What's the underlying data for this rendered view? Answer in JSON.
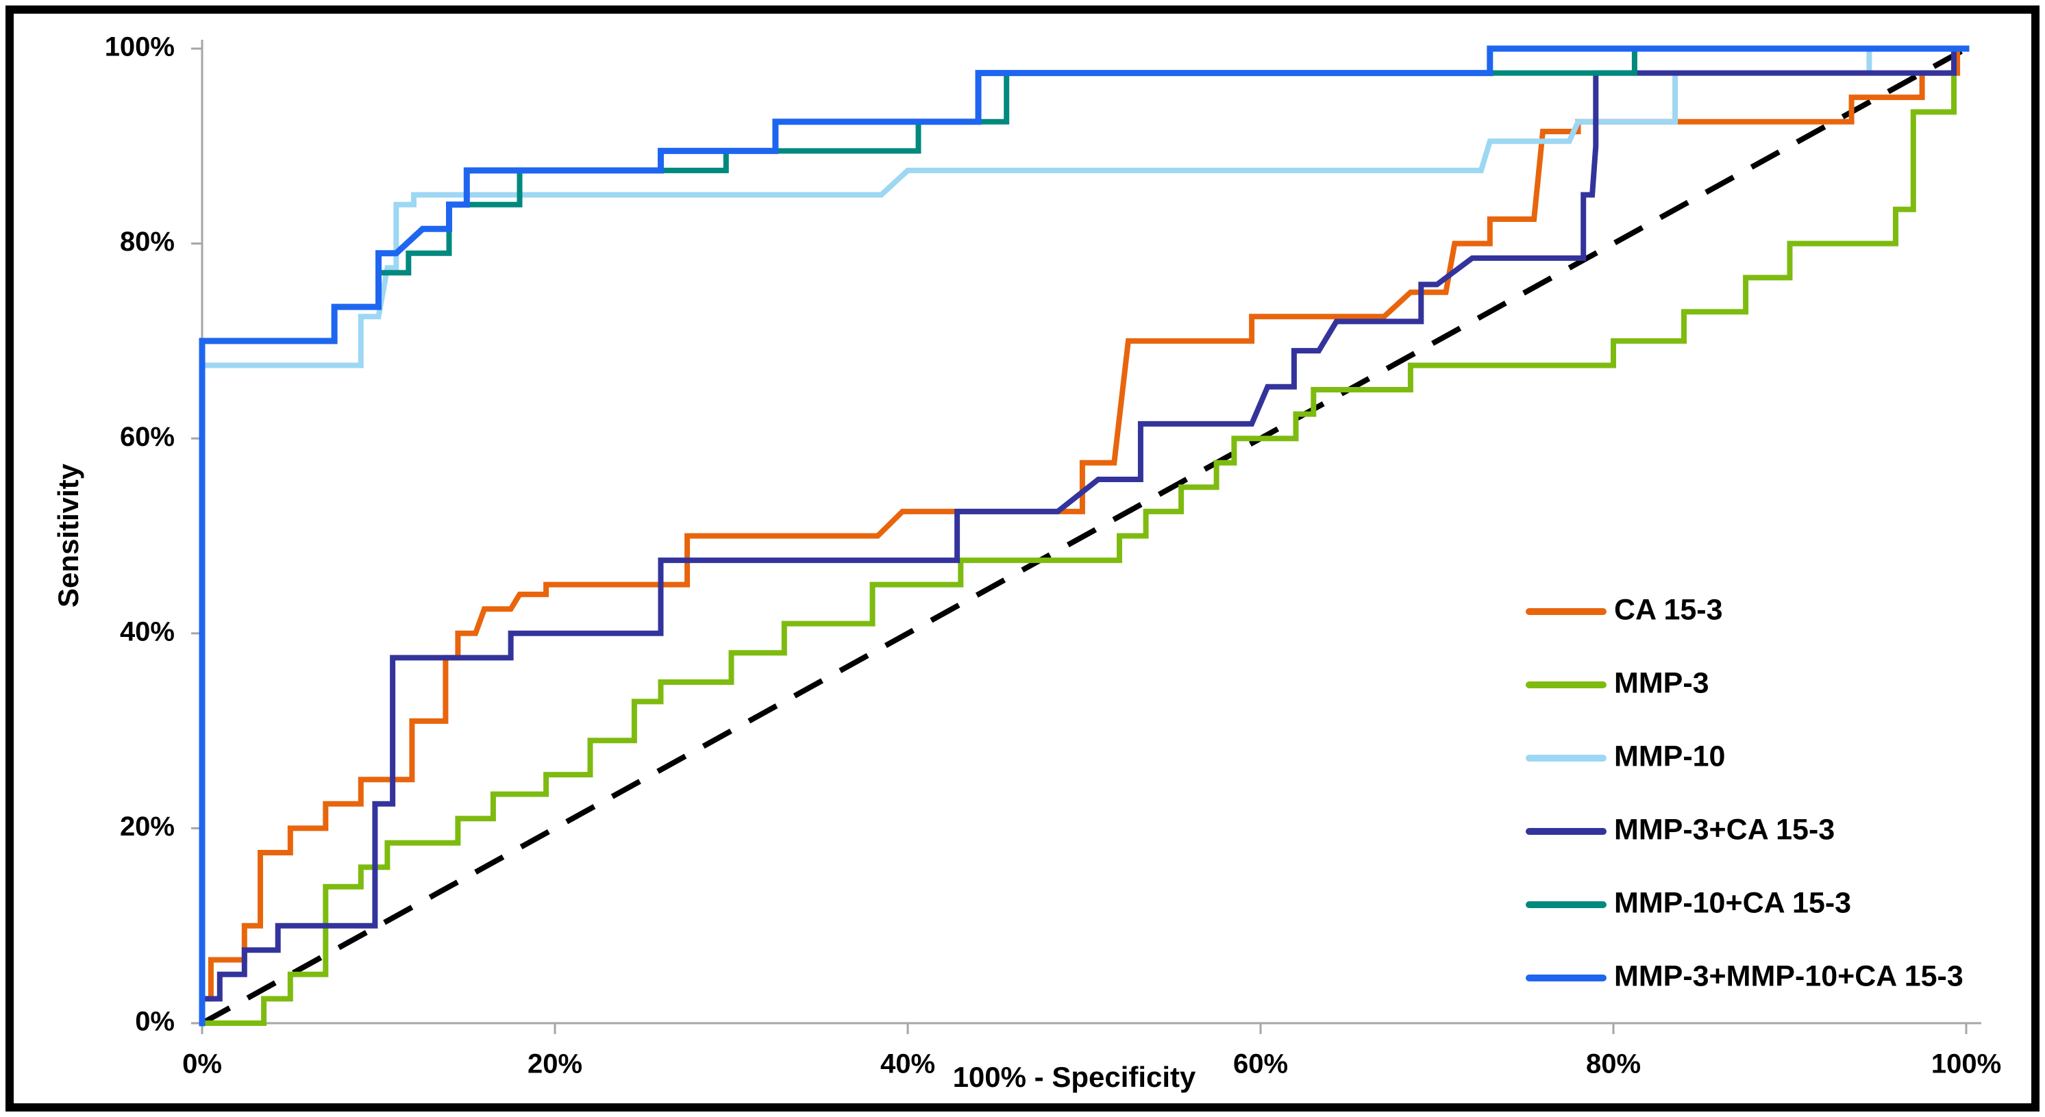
{
  "figure": {
    "background_color": "#ffffff",
    "border_color": "#000000",
    "axis_color": "#a6a6a6",
    "text_color": "#000000"
  },
  "chart_data": {
    "type": "line",
    "subtype": "roc-step-curves",
    "title": "",
    "xlabel": "100% - Specificity",
    "ylabel": "Sensitivity",
    "xlim": [
      0,
      100
    ],
    "ylim": [
      0,
      100
    ],
    "grid": false,
    "x_ticks": [
      "0%",
      "20%",
      "40%",
      "60%",
      "80%",
      "100%"
    ],
    "y_ticks": [
      "0%",
      "20%",
      "40%",
      "60%",
      "80%",
      "100%"
    ],
    "x_tick_values": [
      0,
      20,
      40,
      60,
      80,
      100
    ],
    "y_tick_values": [
      0,
      20,
      40,
      60,
      80,
      100
    ],
    "legend_position": "inside-right",
    "reference_line": {
      "name": "chance-diagonal",
      "style": "dashed",
      "color": "#000000",
      "from": [
        0,
        0
      ],
      "to": [
        100,
        100
      ]
    },
    "series": [
      {
        "name": "CA 15-3",
        "color": "#E8650D",
        "points": [
          [
            0,
            0
          ],
          [
            0,
            2.5
          ],
          [
            0.5,
            2.5
          ],
          [
            0.5,
            6.5
          ],
          [
            2.4,
            6.5
          ],
          [
            2.4,
            10
          ],
          [
            3.3,
            10
          ],
          [
            3.3,
            17.5
          ],
          [
            5,
            17.5
          ],
          [
            5,
            20
          ],
          [
            7,
            20
          ],
          [
            7,
            22.5
          ],
          [
            9,
            22.5
          ],
          [
            9,
            25
          ],
          [
            11.9,
            25
          ],
          [
            11.9,
            31
          ],
          [
            13.8,
            31
          ],
          [
            13.8,
            37.5
          ],
          [
            14.5,
            37.5
          ],
          [
            14.5,
            40
          ],
          [
            15.5,
            40
          ],
          [
            16,
            42.5
          ],
          [
            17.5,
            42.5
          ],
          [
            18,
            44
          ],
          [
            19.5,
            44
          ],
          [
            19.5,
            45
          ],
          [
            27.5,
            45
          ],
          [
            27.5,
            50
          ],
          [
            38.3,
            50
          ],
          [
            39.7,
            52.5
          ],
          [
            49.9,
            52.5
          ],
          [
            49.9,
            57.5
          ],
          [
            51.7,
            57.5
          ],
          [
            52.5,
            70
          ],
          [
            59.5,
            70
          ],
          [
            59.5,
            72.5
          ],
          [
            67,
            72.5
          ],
          [
            68.5,
            75
          ],
          [
            70.5,
            75
          ],
          [
            71,
            80
          ],
          [
            73,
            80
          ],
          [
            73,
            82.5
          ],
          [
            75.5,
            82.5
          ],
          [
            76,
            91.5
          ],
          [
            78,
            91.5
          ],
          [
            78,
            92.5
          ],
          [
            93.5,
            92.5
          ],
          [
            93.5,
            95
          ],
          [
            97.5,
            95
          ],
          [
            97.5,
            97.5
          ],
          [
            99.5,
            97.5
          ],
          [
            99.5,
            100
          ],
          [
            100,
            100
          ]
        ]
      },
      {
        "name": "MMP-3",
        "color": "#7EBB10",
        "points": [
          [
            0,
            0
          ],
          [
            3.5,
            0
          ],
          [
            3.5,
            2.5
          ],
          [
            5,
            2.5
          ],
          [
            5,
            5
          ],
          [
            7,
            5
          ],
          [
            7,
            14
          ],
          [
            9,
            14
          ],
          [
            9,
            16
          ],
          [
            10.5,
            16
          ],
          [
            10.5,
            18.5
          ],
          [
            14.5,
            18.5
          ],
          [
            14.5,
            21
          ],
          [
            16.5,
            21
          ],
          [
            16.5,
            23.5
          ],
          [
            19.5,
            23.5
          ],
          [
            19.5,
            25.5
          ],
          [
            22,
            25.5
          ],
          [
            22,
            29
          ],
          [
            24.5,
            29
          ],
          [
            24.5,
            33
          ],
          [
            26,
            33
          ],
          [
            26,
            35
          ],
          [
            30,
            35
          ],
          [
            30,
            38
          ],
          [
            33,
            38
          ],
          [
            33,
            41
          ],
          [
            38,
            41
          ],
          [
            38,
            45
          ],
          [
            43,
            45
          ],
          [
            43,
            47.5
          ],
          [
            52,
            47.5
          ],
          [
            52,
            50
          ],
          [
            53.5,
            50
          ],
          [
            53.5,
            52.5
          ],
          [
            55.5,
            52.5
          ],
          [
            55.5,
            55
          ],
          [
            57.5,
            55
          ],
          [
            57.5,
            57.5
          ],
          [
            58.5,
            57.5
          ],
          [
            58.5,
            60
          ],
          [
            62,
            60
          ],
          [
            62,
            62.5
          ],
          [
            63,
            62.5
          ],
          [
            63,
            65
          ],
          [
            68.5,
            65
          ],
          [
            68.5,
            67.5
          ],
          [
            80,
            67.5
          ],
          [
            80,
            70
          ],
          [
            84,
            70
          ],
          [
            84,
            73
          ],
          [
            87.5,
            73
          ],
          [
            87.5,
            76.5
          ],
          [
            90,
            76.5
          ],
          [
            90,
            80
          ],
          [
            96,
            80
          ],
          [
            96,
            83.5
          ],
          [
            97,
            83.5
          ],
          [
            97,
            93.5
          ],
          [
            99.3,
            93.5
          ],
          [
            99.3,
            100
          ],
          [
            100,
            100
          ]
        ]
      },
      {
        "name": "MMP-10",
        "color": "#9DD7F4",
        "points": [
          [
            0,
            0
          ],
          [
            0,
            67.5
          ],
          [
            9,
            67.5
          ],
          [
            9,
            72.5
          ],
          [
            10,
            72.5
          ],
          [
            10.5,
            77.5
          ],
          [
            11,
            77.5
          ],
          [
            11,
            84
          ],
          [
            12,
            84
          ],
          [
            12,
            85
          ],
          [
            38.5,
            85
          ],
          [
            40,
            87.5
          ],
          [
            72.5,
            87.5
          ],
          [
            73,
            90.5
          ],
          [
            77.5,
            90.5
          ],
          [
            78,
            92.5
          ],
          [
            83.5,
            92.5
          ],
          [
            83.5,
            97.5
          ],
          [
            94.5,
            97.5
          ],
          [
            94.5,
            100
          ],
          [
            100,
            100
          ]
        ]
      },
      {
        "name": "MMP-3+CA 15-3",
        "color": "#33349B",
        "points": [
          [
            0,
            0
          ],
          [
            0,
            2.5
          ],
          [
            1,
            2.5
          ],
          [
            1,
            5
          ],
          [
            2.4,
            5
          ],
          [
            2.4,
            7.5
          ],
          [
            4.3,
            7.5
          ],
          [
            4.3,
            10
          ],
          [
            9.8,
            10
          ],
          [
            9.8,
            22.5
          ],
          [
            10.8,
            22.5
          ],
          [
            10.8,
            37.5
          ],
          [
            17.5,
            37.5
          ],
          [
            17.5,
            40
          ],
          [
            26,
            40
          ],
          [
            26,
            47.5
          ],
          [
            42.8,
            47.5
          ],
          [
            42.8,
            52.5
          ],
          [
            48.5,
            52.5
          ],
          [
            50.8,
            55.8
          ],
          [
            53.2,
            55.8
          ],
          [
            53.2,
            61.5
          ],
          [
            59.5,
            61.5
          ],
          [
            60.4,
            65.3
          ],
          [
            61.9,
            65.3
          ],
          [
            61.9,
            69
          ],
          [
            63.3,
            69
          ],
          [
            64.3,
            72
          ],
          [
            69.1,
            72
          ],
          [
            69.1,
            75.8
          ],
          [
            70,
            75.8
          ],
          [
            72,
            78.5
          ],
          [
            78.3,
            78.5
          ],
          [
            78.3,
            85
          ],
          [
            78.8,
            85
          ],
          [
            79,
            90
          ],
          [
            79,
            97.5
          ],
          [
            99.3,
            97.5
          ],
          [
            99.3,
            100
          ],
          [
            100,
            100
          ]
        ]
      },
      {
        "name": "MMP-10+CA 15-3",
        "color": "#00897E",
        "points": [
          [
            0,
            0
          ],
          [
            0,
            70
          ],
          [
            7.5,
            70
          ],
          [
            7.5,
            73.5
          ],
          [
            10,
            73.5
          ],
          [
            10,
            77
          ],
          [
            11.7,
            77
          ],
          [
            11.7,
            79
          ],
          [
            14,
            79
          ],
          [
            14,
            84
          ],
          [
            18,
            84
          ],
          [
            18,
            87.5
          ],
          [
            29.7,
            87.5
          ],
          [
            29.7,
            89.5
          ],
          [
            40.6,
            89.5
          ],
          [
            40.6,
            92.5
          ],
          [
            45.6,
            92.5
          ],
          [
            45.6,
            97.5
          ],
          [
            81.2,
            97.5
          ],
          [
            81.2,
            100
          ],
          [
            100,
            100
          ]
        ]
      },
      {
        "name": "MMP-3+MMP-10+CA 15-3",
        "color": "#1E66F0",
        "points": [
          [
            0,
            0
          ],
          [
            0,
            70
          ],
          [
            7.5,
            70
          ],
          [
            7.5,
            73.5
          ],
          [
            10,
            73.5
          ],
          [
            10,
            79
          ],
          [
            11,
            79
          ],
          [
            12.5,
            81.5
          ],
          [
            14,
            81.5
          ],
          [
            14,
            84
          ],
          [
            15,
            84
          ],
          [
            15,
            87.5
          ],
          [
            26,
            87.5
          ],
          [
            26,
            89.5
          ],
          [
            32.5,
            89.5
          ],
          [
            32.5,
            92.5
          ],
          [
            44,
            92.5
          ],
          [
            44,
            97.5
          ],
          [
            73,
            97.5
          ],
          [
            73,
            100
          ],
          [
            100,
            100
          ]
        ]
      }
    ]
  }
}
